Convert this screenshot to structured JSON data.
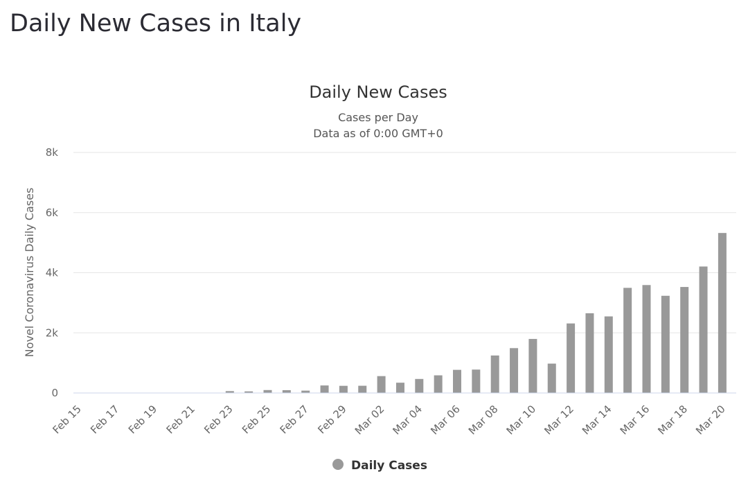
{
  "page": {
    "title": "Daily New Cases in Italy"
  },
  "chart_data": {
    "type": "bar",
    "title": "Daily New Cases",
    "subtitle": [
      "Cases per Day",
      "Data as of 0:00 GMT+0"
    ],
    "ylabel": "Novel Coronavirus Daily Cases",
    "xlabel": "",
    "ylim": [
      0,
      8000
    ],
    "y_ticks": [
      0,
      2000,
      4000,
      6000,
      8000
    ],
    "y_tick_labels": [
      "0",
      "2k",
      "4k",
      "6k",
      "8k"
    ],
    "categories": [
      "Feb 15",
      "Feb 16",
      "Feb 17",
      "Feb 18",
      "Feb 19",
      "Feb 20",
      "Feb 21",
      "Feb 22",
      "Feb 23",
      "Feb 24",
      "Feb 25",
      "Feb 26",
      "Feb 27",
      "Feb 28",
      "Feb 29",
      "Mar 01",
      "Mar 02",
      "Mar 03",
      "Mar 04",
      "Mar 05",
      "Mar 06",
      "Mar 07",
      "Mar 08",
      "Mar 09",
      "Mar 10",
      "Mar 11",
      "Mar 12",
      "Mar 13",
      "Mar 14",
      "Mar 15",
      "Mar 16",
      "Mar 17",
      "Mar 18",
      "Mar 19",
      "Mar 20"
    ],
    "x_tick_labels": [
      "Feb 15",
      "Feb 17",
      "Feb 19",
      "Feb 21",
      "Feb 23",
      "Feb 25",
      "Feb 27",
      "Feb 29",
      "Mar 02",
      "Mar 04",
      "Mar 06",
      "Mar 08",
      "Mar 10",
      "Mar 12",
      "Mar 14",
      "Mar 16",
      "Mar 18",
      "Mar 20"
    ],
    "series": [
      {
        "name": "Daily Cases",
        "values": [
          0,
          0,
          0,
          0,
          0,
          0,
          0,
          0,
          62,
          53,
          97,
          93,
          78,
          250,
          238,
          240,
          561,
          342,
          466,
          587,
          769,
          778,
          1247,
          1492,
          1797,
          977,
          2313,
          2651,
          2547,
          3497,
          3590,
          3233,
          3526,
          4207,
          5322
        ]
      }
    ],
    "legend": {
      "position": "bottom-center",
      "label": "Daily Cases"
    },
    "grid": true,
    "colors": {
      "bar": "#999999",
      "grid": "#e6e6e6",
      "baseline": "#ccd6eb"
    }
  }
}
